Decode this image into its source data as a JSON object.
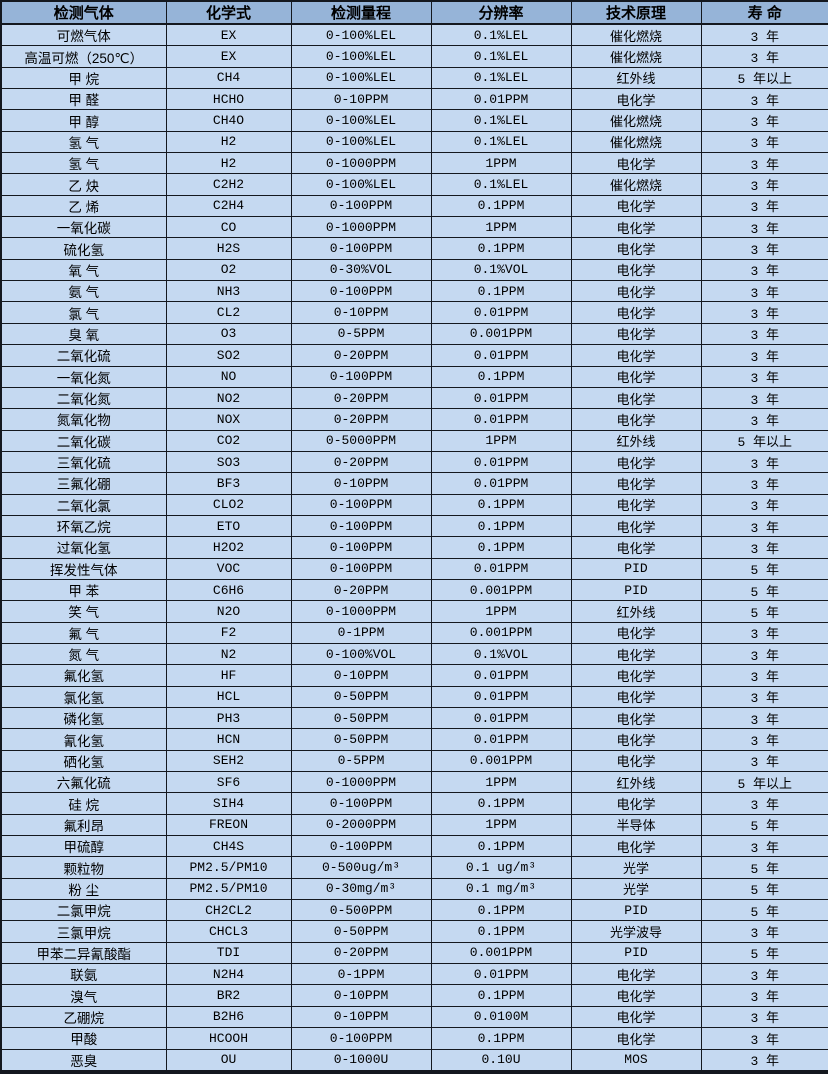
{
  "colors": {
    "header_bg": "#96b4d8",
    "row_bg": "#c5d9f1",
    "border": "#14181f",
    "text": "#000000"
  },
  "table": {
    "columns": [
      "检测气体",
      "化学式",
      "检测量程",
      "分辨率",
      "技术原理",
      "寿 命"
    ],
    "rows": [
      [
        "可燃气体",
        "EX",
        "0-100%LEL",
        "0.1%LEL",
        "催化燃烧",
        "3 年"
      ],
      [
        "高温可燃（250℃）",
        "EX",
        "0-100%LEL",
        "0.1%LEL",
        "催化燃烧",
        "3 年"
      ],
      [
        "甲 烷",
        "CH4",
        "0-100%LEL",
        "0.1%LEL",
        "红外线",
        "5 年以上"
      ],
      [
        "甲 醛",
        "HCHO",
        "0-10PPM",
        "0.01PPM",
        "电化学",
        "3 年"
      ],
      [
        "甲 醇",
        "CH4O",
        "0-100%LEL",
        "0.1%LEL",
        "催化燃烧",
        "3 年"
      ],
      [
        "氢 气",
        "H2",
        "0-100%LEL",
        "0.1%LEL",
        "催化燃烧",
        "3 年"
      ],
      [
        "氢 气",
        "H2",
        "0-1000PPM",
        "1PPM",
        "电化学",
        "3 年"
      ],
      [
        "乙 炔",
        "C2H2",
        "0-100%LEL",
        "0.1%LEL",
        "催化燃烧",
        "3 年"
      ],
      [
        "乙 烯",
        "C2H4",
        "0-100PPM",
        "0.1PPM",
        "电化学",
        "3 年"
      ],
      [
        "一氧化碳",
        "CO",
        "0-1000PPM",
        "1PPM",
        "电化学",
        "3 年"
      ],
      [
        "硫化氢",
        "H2S",
        "0-100PPM",
        "0.1PPM",
        "电化学",
        "3 年"
      ],
      [
        "氧 气",
        "O2",
        "0-30%VOL",
        "0.1%VOL",
        "电化学",
        "3 年"
      ],
      [
        "氨 气",
        "NH3",
        "0-100PPM",
        "0.1PPM",
        "电化学",
        "3 年"
      ],
      [
        "氯 气",
        "CL2",
        "0-10PPM",
        "0.01PPM",
        "电化学",
        "3 年"
      ],
      [
        "臭 氧",
        "O3",
        "0-5PPM",
        "0.001PPM",
        "电化学",
        "3 年"
      ],
      [
        "二氧化硫",
        "SO2",
        "0-20PPM",
        "0.01PPM",
        "电化学",
        "3 年"
      ],
      [
        "一氧化氮",
        "NO",
        "0-100PPM",
        "0.1PPM",
        "电化学",
        "3 年"
      ],
      [
        "二氧化氮",
        "NO2",
        "0-20PPM",
        "0.01PPM",
        "电化学",
        "3 年"
      ],
      [
        "氮氧化物",
        "NOX",
        "0-20PPM",
        "0.01PPM",
        "电化学",
        "3 年"
      ],
      [
        "二氧化碳",
        "CO2",
        "0-5000PPM",
        "1PPM",
        "红外线",
        "5 年以上"
      ],
      [
        "三氧化硫",
        "SO3",
        "0-20PPM",
        "0.01PPM",
        "电化学",
        "3 年"
      ],
      [
        "三氟化硼",
        "BF3",
        "0-10PPM",
        "0.01PPM",
        "电化学",
        "3 年"
      ],
      [
        "二氧化氯",
        "CLO2",
        "0-100PPM",
        "0.1PPM",
        "电化学",
        "3 年"
      ],
      [
        "环氧乙烷",
        "ETO",
        "0-100PPM",
        "0.1PPM",
        "电化学",
        "3 年"
      ],
      [
        "过氧化氢",
        "H2O2",
        "0-100PPM",
        "0.1PPM",
        "电化学",
        "3 年"
      ],
      [
        "挥发性气体",
        "VOC",
        "0-100PPM",
        "0.01PPM",
        "PID",
        "5 年"
      ],
      [
        "甲 苯",
        "C6H6",
        "0-20PPM",
        "0.001PPM",
        "PID",
        "5 年"
      ],
      [
        "笑 气",
        "N2O",
        "0-1000PPM",
        "1PPM",
        "红外线",
        "5 年"
      ],
      [
        "氟 气",
        "F2",
        "0-1PPM",
        "0.001PPM",
        "电化学",
        "3 年"
      ],
      [
        "氮 气",
        "N2",
        "0-100%VOL",
        "0.1%VOL",
        "电化学",
        "3 年"
      ],
      [
        "氟化氢",
        "HF",
        "0-10PPM",
        "0.01PPM",
        "电化学",
        "3 年"
      ],
      [
        "氯化氢",
        "HCL",
        "0-50PPM",
        "0.01PPM",
        "电化学",
        "3 年"
      ],
      [
        "磷化氢",
        "PH3",
        "0-50PPM",
        "0.01PPM",
        "电化学",
        "3 年"
      ],
      [
        "氰化氢",
        "HCN",
        "0-50PPM",
        "0.01PPM",
        "电化学",
        "3 年"
      ],
      [
        "硒化氢",
        "SEH2",
        "0-5PPM",
        "0.001PPM",
        "电化学",
        "3 年"
      ],
      [
        "六氟化硫",
        "SF6",
        "0-1000PPM",
        "1PPM",
        "红外线",
        "5 年以上"
      ],
      [
        "硅 烷",
        "SIH4",
        "0-100PPM",
        "0.1PPM",
        "电化学",
        "3 年"
      ],
      [
        "氟利昂",
        "FREON",
        "0-2000PPM",
        "1PPM",
        "半导体",
        "5 年"
      ],
      [
        "甲硫醇",
        "CH4S",
        "0-100PPM",
        "0.1PPM",
        "电化学",
        "3 年"
      ],
      [
        "颗粒物",
        "PM2.5/PM10",
        "0-500ug/m³",
        "0.1 ug/m³",
        "光学",
        "5 年"
      ],
      [
        "粉 尘",
        "PM2.5/PM10",
        "0-30mg/m³",
        "0.1 mg/m³",
        "光学",
        "5 年"
      ],
      [
        "二氯甲烷",
        "CH2CL2",
        "0-500PPM",
        "0.1PPM",
        "PID",
        "5 年"
      ],
      [
        "三氯甲烷",
        "CHCL3",
        "0-50PPM",
        "0.1PPM",
        "光学波导",
        "3 年"
      ],
      [
        "甲苯二异氰酸酯",
        "TDI",
        "0-20PPM",
        "0.001PPM",
        "PID",
        "5 年"
      ],
      [
        "联氨",
        "N2H4",
        "0-1PPM",
        "0.01PPM",
        "电化学",
        "3 年"
      ],
      [
        "溴气",
        "BR2",
        "0-10PPM",
        "0.1PPM",
        "电化学",
        "3 年"
      ],
      [
        "乙硼烷",
        "B2H6",
        "0-10PPM",
        "0.0100M",
        "电化学",
        "3 年"
      ],
      [
        "甲酸",
        "HCOOH",
        "0-100PPM",
        "0.1PPM",
        "电化学",
        "3 年"
      ],
      [
        "恶臭",
        "OU",
        "0-1000U",
        "0.10U",
        "MOS",
        "3 年"
      ]
    ]
  }
}
